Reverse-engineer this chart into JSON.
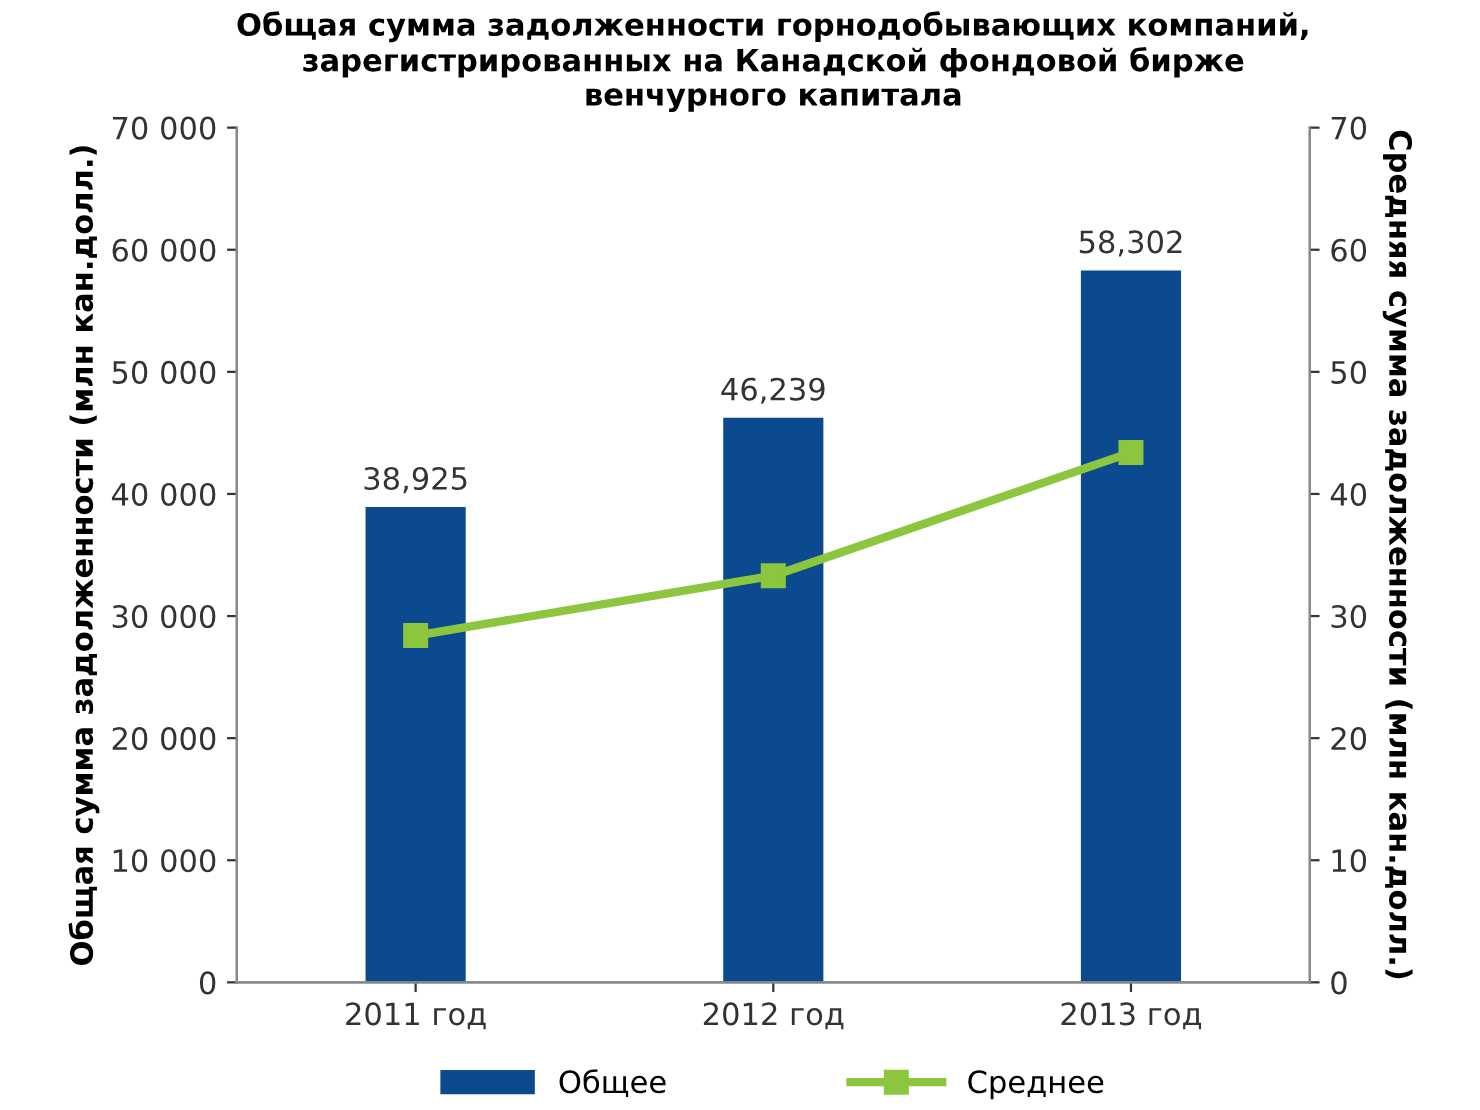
{
  "chart_data": {
    "type": "bar",
    "title": "Общая сумма задолженности горнодобывающих компаний,\nзарегистрированных на Канадской фондовой бирже\nвенчурного капитала",
    "ylabel": "Общая сумма задолженности (млн кан.долл.)",
    "y2label": "Средняя сумма задолженности (млн кан.долл.)",
    "categories": [
      "2011 год",
      "2012 год",
      "2013 год"
    ],
    "series": [
      {
        "name": "Общее",
        "color": "#0b4a8f",
        "values": [
          38925,
          46239,
          58302
        ],
        "value_labels": [
          "38,925",
          "46,239",
          "58,302"
        ]
      },
      {
        "name": "Среднее",
        "type": "line",
        "axis": "y2",
        "color": "#8cc63f",
        "values": [
          28.4,
          33.3,
          43.4
        ],
        "marker": "square",
        "line_style": "solid"
      }
    ],
    "ylim": [
      0,
      70000
    ],
    "yticks": [
      {
        "value": 0,
        "label": "0"
      },
      {
        "value": 10000,
        "label": "10 000"
      },
      {
        "value": 20000,
        "label": "20 000"
      },
      {
        "value": 30000,
        "label": "30 000"
      },
      {
        "value": 40000,
        "label": "40 000"
      },
      {
        "value": 50000,
        "label": "50 000"
      },
      {
        "value": 60000,
        "label": "60 000"
      },
      {
        "value": 70000,
        "label": "70 000"
      }
    ],
    "y2lim": [
      0,
      70
    ],
    "y2ticks": [
      0,
      10,
      20,
      30,
      40,
      50,
      60,
      70
    ],
    "grid": false,
    "legend": "bottom"
  }
}
